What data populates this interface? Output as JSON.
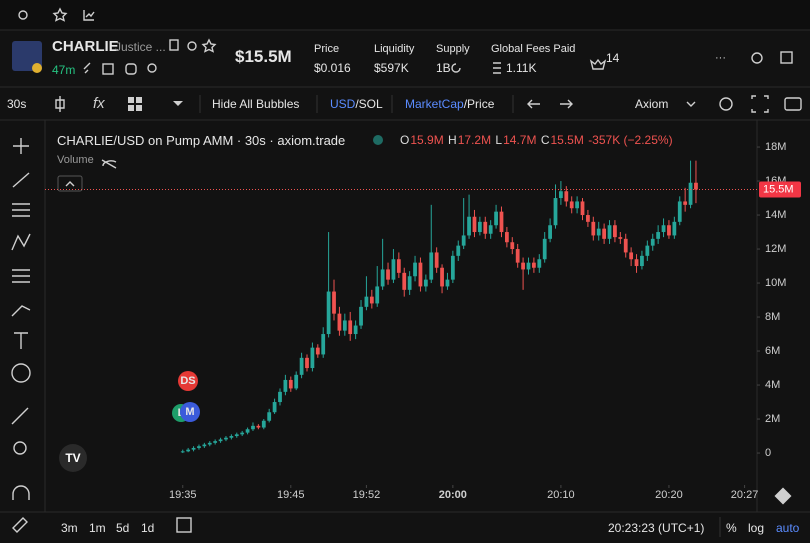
{
  "header": {
    "ticker": "CHARLIE",
    "name": "Justice ...",
    "age": "47m",
    "market_cap": "$15.5M",
    "stats": [
      {
        "label": "Price",
        "value": "$0.016"
      },
      {
        "label": "Liquidity",
        "value": "$597K"
      },
      {
        "label": "Supply",
        "value": "1B"
      },
      {
        "label": "Global Fees Paid",
        "value": "1.11K"
      }
    ],
    "holders": "14"
  },
  "toolbar": {
    "interval": "30s",
    "bubbles": "Hide All Bubbles",
    "usd": "USD",
    "sol": "/SOL",
    "mcap": "MarketCap",
    "price": "/Price",
    "source": "Axiom"
  },
  "bottom": {
    "ranges": [
      "3m",
      "1m",
      "5d",
      "1d"
    ],
    "clock": "20:23:23 (UTC+1)",
    "percent": "%",
    "log": "log",
    "auto": "auto"
  },
  "markers": [
    "DS",
    "M",
    "L"
  ],
  "chart_data": {
    "type": "candlestick",
    "title": "CHARLIE/USD on Pump AMM · 30s · axiom.trade",
    "volume_label": "Volume",
    "ohlc": [
      {
        "key": "O",
        "value": "15.9M"
      },
      {
        "key": "H",
        "value": "17.2M"
      },
      {
        "key": "L",
        "value": "14.7M"
      },
      {
        "key": "C",
        "value": "15.5M"
      }
    ],
    "change": "-357K (−2.25%)",
    "up_color": "#26a69a",
    "down_color": "#ef5350",
    "grid": false,
    "last_price": {
      "value": 15.5,
      "label": "15.5M"
    },
    "open": [
      0.05,
      0.1,
      0.2,
      0.3,
      0.4,
      0.5,
      0.6,
      0.7,
      0.8,
      0.9,
      1.0,
      1.1,
      1.2,
      1.4,
      1.6,
      1.5,
      1.9,
      2.4,
      3.0,
      3.6,
      4.3,
      3.8,
      4.6,
      5.6,
      5.0,
      6.2,
      5.8,
      7.0,
      9.5,
      8.2,
      7.2,
      7.8,
      7.0,
      7.5,
      8.6,
      9.2,
      8.8,
      9.8,
      10.8,
      10.2,
      11.4,
      10.6,
      9.6,
      10.4,
      11.2,
      9.8,
      10.2,
      11.8,
      10.9,
      9.8,
      10.2,
      11.6,
      12.2,
      12.8,
      13.9,
      13.0,
      13.6,
      12.9,
      13.4,
      14.2,
      13.0,
      12.4,
      12.0,
      11.2,
      10.8,
      11.2,
      10.9,
      11.4,
      12.6,
      13.4,
      15.0,
      15.4,
      14.8,
      14.4,
      14.8,
      14.0,
      13.6,
      12.8,
      13.2,
      12.6,
      13.4,
      12.7,
      12.6,
      11.8,
      11.4,
      11.0,
      11.6,
      12.2,
      12.6,
      13.0,
      13.4,
      12.8,
      13.6,
      14.8,
      14.6,
      15.9
    ],
    "high": [
      0.2,
      0.3,
      0.4,
      0.5,
      0.6,
      0.7,
      0.8,
      0.9,
      1.0,
      1.1,
      1.2,
      1.3,
      1.5,
      1.8,
      1.7,
      2.0,
      2.6,
      3.2,
      3.8,
      4.6,
      4.5,
      4.8,
      5.9,
      5.8,
      6.5,
      6.4,
      7.4,
      13.0,
      10.2,
      8.6,
      8.2,
      8.3,
      7.8,
      9.0,
      10.4,
      9.6,
      11.0,
      12.6,
      11.2,
      12.0,
      11.8,
      10.9,
      10.7,
      11.6,
      11.5,
      10.5,
      14.6,
      12.1,
      11.1,
      10.6,
      11.9,
      12.5,
      15.0,
      15.2,
      14.3,
      13.9,
      13.9,
      13.7,
      14.6,
      14.5,
      13.3,
      12.7,
      12.3,
      11.5,
      11.5,
      11.5,
      11.7,
      13.0,
      13.8,
      15.8,
      16.0,
      15.7,
      15.1,
      15.1,
      15.0,
      14.3,
      13.9,
      13.6,
      13.5,
      13.7,
      13.7,
      13.0,
      12.9,
      12.1,
      11.7,
      11.9,
      12.5,
      12.9,
      13.4,
      13.8,
      13.7,
      13.9,
      15.1,
      15.6,
      17.2,
      17.2
    ],
    "low": [
      0,
      0.05,
      0.1,
      0.2,
      0.3,
      0.4,
      0.5,
      0.6,
      0.7,
      0.8,
      0.9,
      1.0,
      1.1,
      1.3,
      1.4,
      1.4,
      1.8,
      2.3,
      2.8,
      3.4,
      3.6,
      3.7,
      4.4,
      4.8,
      4.8,
      5.6,
      5.6,
      6.8,
      7.8,
      6.9,
      6.9,
      6.6,
      6.7,
      7.3,
      8.4,
      8.5,
      8.6,
      9.6,
      9.9,
      10.0,
      10.3,
      9.2,
      9.3,
      10.1,
      9.5,
      9.5,
      10.0,
      10.6,
      9.4,
      9.6,
      10.0,
      11.3,
      12.0,
      12.6,
      12.7,
      12.8,
      12.6,
      12.6,
      13.2,
      12.7,
      12.1,
      11.7,
      10.9,
      9.6,
      10.5,
      10.6,
      10.6,
      11.2,
      12.4,
      13.2,
      14.6,
      14.5,
      14.1,
      14.1,
      13.7,
      13.3,
      12.5,
      12.5,
      12.3,
      12.3,
      12.4,
      12.3,
      11.5,
      11.0,
      10.6,
      10.8,
      11.3,
      11.9,
      12.3,
      12.7,
      12.6,
      12.6,
      13.4,
      14.2,
      14.4,
      14.7
    ],
    "close": [
      0.1,
      0.2,
      0.3,
      0.4,
      0.5,
      0.6,
      0.7,
      0.8,
      0.9,
      1.0,
      1.1,
      1.2,
      1.4,
      1.6,
      1.5,
      1.9,
      2.4,
      3.0,
      3.6,
      4.3,
      3.8,
      4.6,
      5.6,
      5.0,
      6.2,
      5.8,
      7.0,
      9.5,
      8.2,
      7.2,
      7.8,
      7.0,
      7.5,
      8.6,
      9.2,
      8.8,
      9.8,
      10.8,
      10.2,
      11.4,
      10.6,
      9.6,
      10.4,
      11.2,
      9.8,
      10.2,
      11.8,
      10.9,
      9.8,
      10.2,
      11.6,
      12.2,
      12.8,
      13.9,
      13.0,
      13.6,
      12.9,
      13.4,
      14.2,
      13.0,
      12.4,
      12.0,
      11.2,
      10.8,
      11.2,
      10.9,
      11.4,
      12.6,
      13.4,
      15.0,
      15.4,
      14.8,
      14.4,
      14.8,
      14.0,
      13.6,
      12.8,
      13.2,
      12.6,
      13.4,
      12.7,
      12.6,
      11.8,
      11.4,
      11.0,
      11.6,
      12.2,
      12.6,
      13.0,
      13.4,
      12.8,
      13.6,
      14.8,
      14.6,
      15.9,
      15.5
    ],
    "xlim": [
      -25.5,
      106.3
    ],
    "xticks": [
      {
        "value": 0,
        "label": "19:35"
      },
      {
        "value": 20,
        "label": "19:45"
      },
      {
        "value": 34,
        "label": "19:52"
      },
      {
        "value": 50,
        "label": "20:00"
      },
      {
        "value": 70,
        "label": "20:10"
      },
      {
        "value": 90,
        "label": "20:20"
      },
      {
        "value": 104,
        "label": "20:27"
      }
    ],
    "ylim": [
      -1.88,
      19.12
    ],
    "yticks": [
      0,
      {
        "value": 2,
        "label": "2M"
      },
      {
        "value": 4,
        "label": "4M"
      },
      {
        "value": 6,
        "label": "6M"
      },
      {
        "value": 8,
        "label": "8M"
      },
      {
        "value": 10,
        "label": "10M"
      },
      {
        "value": 12,
        "label": "12M"
      },
      {
        "value": 14,
        "label": "14M"
      },
      {
        "value": 16,
        "label": "16M"
      },
      {
        "value": 18,
        "label": "18M"
      }
    ]
  }
}
